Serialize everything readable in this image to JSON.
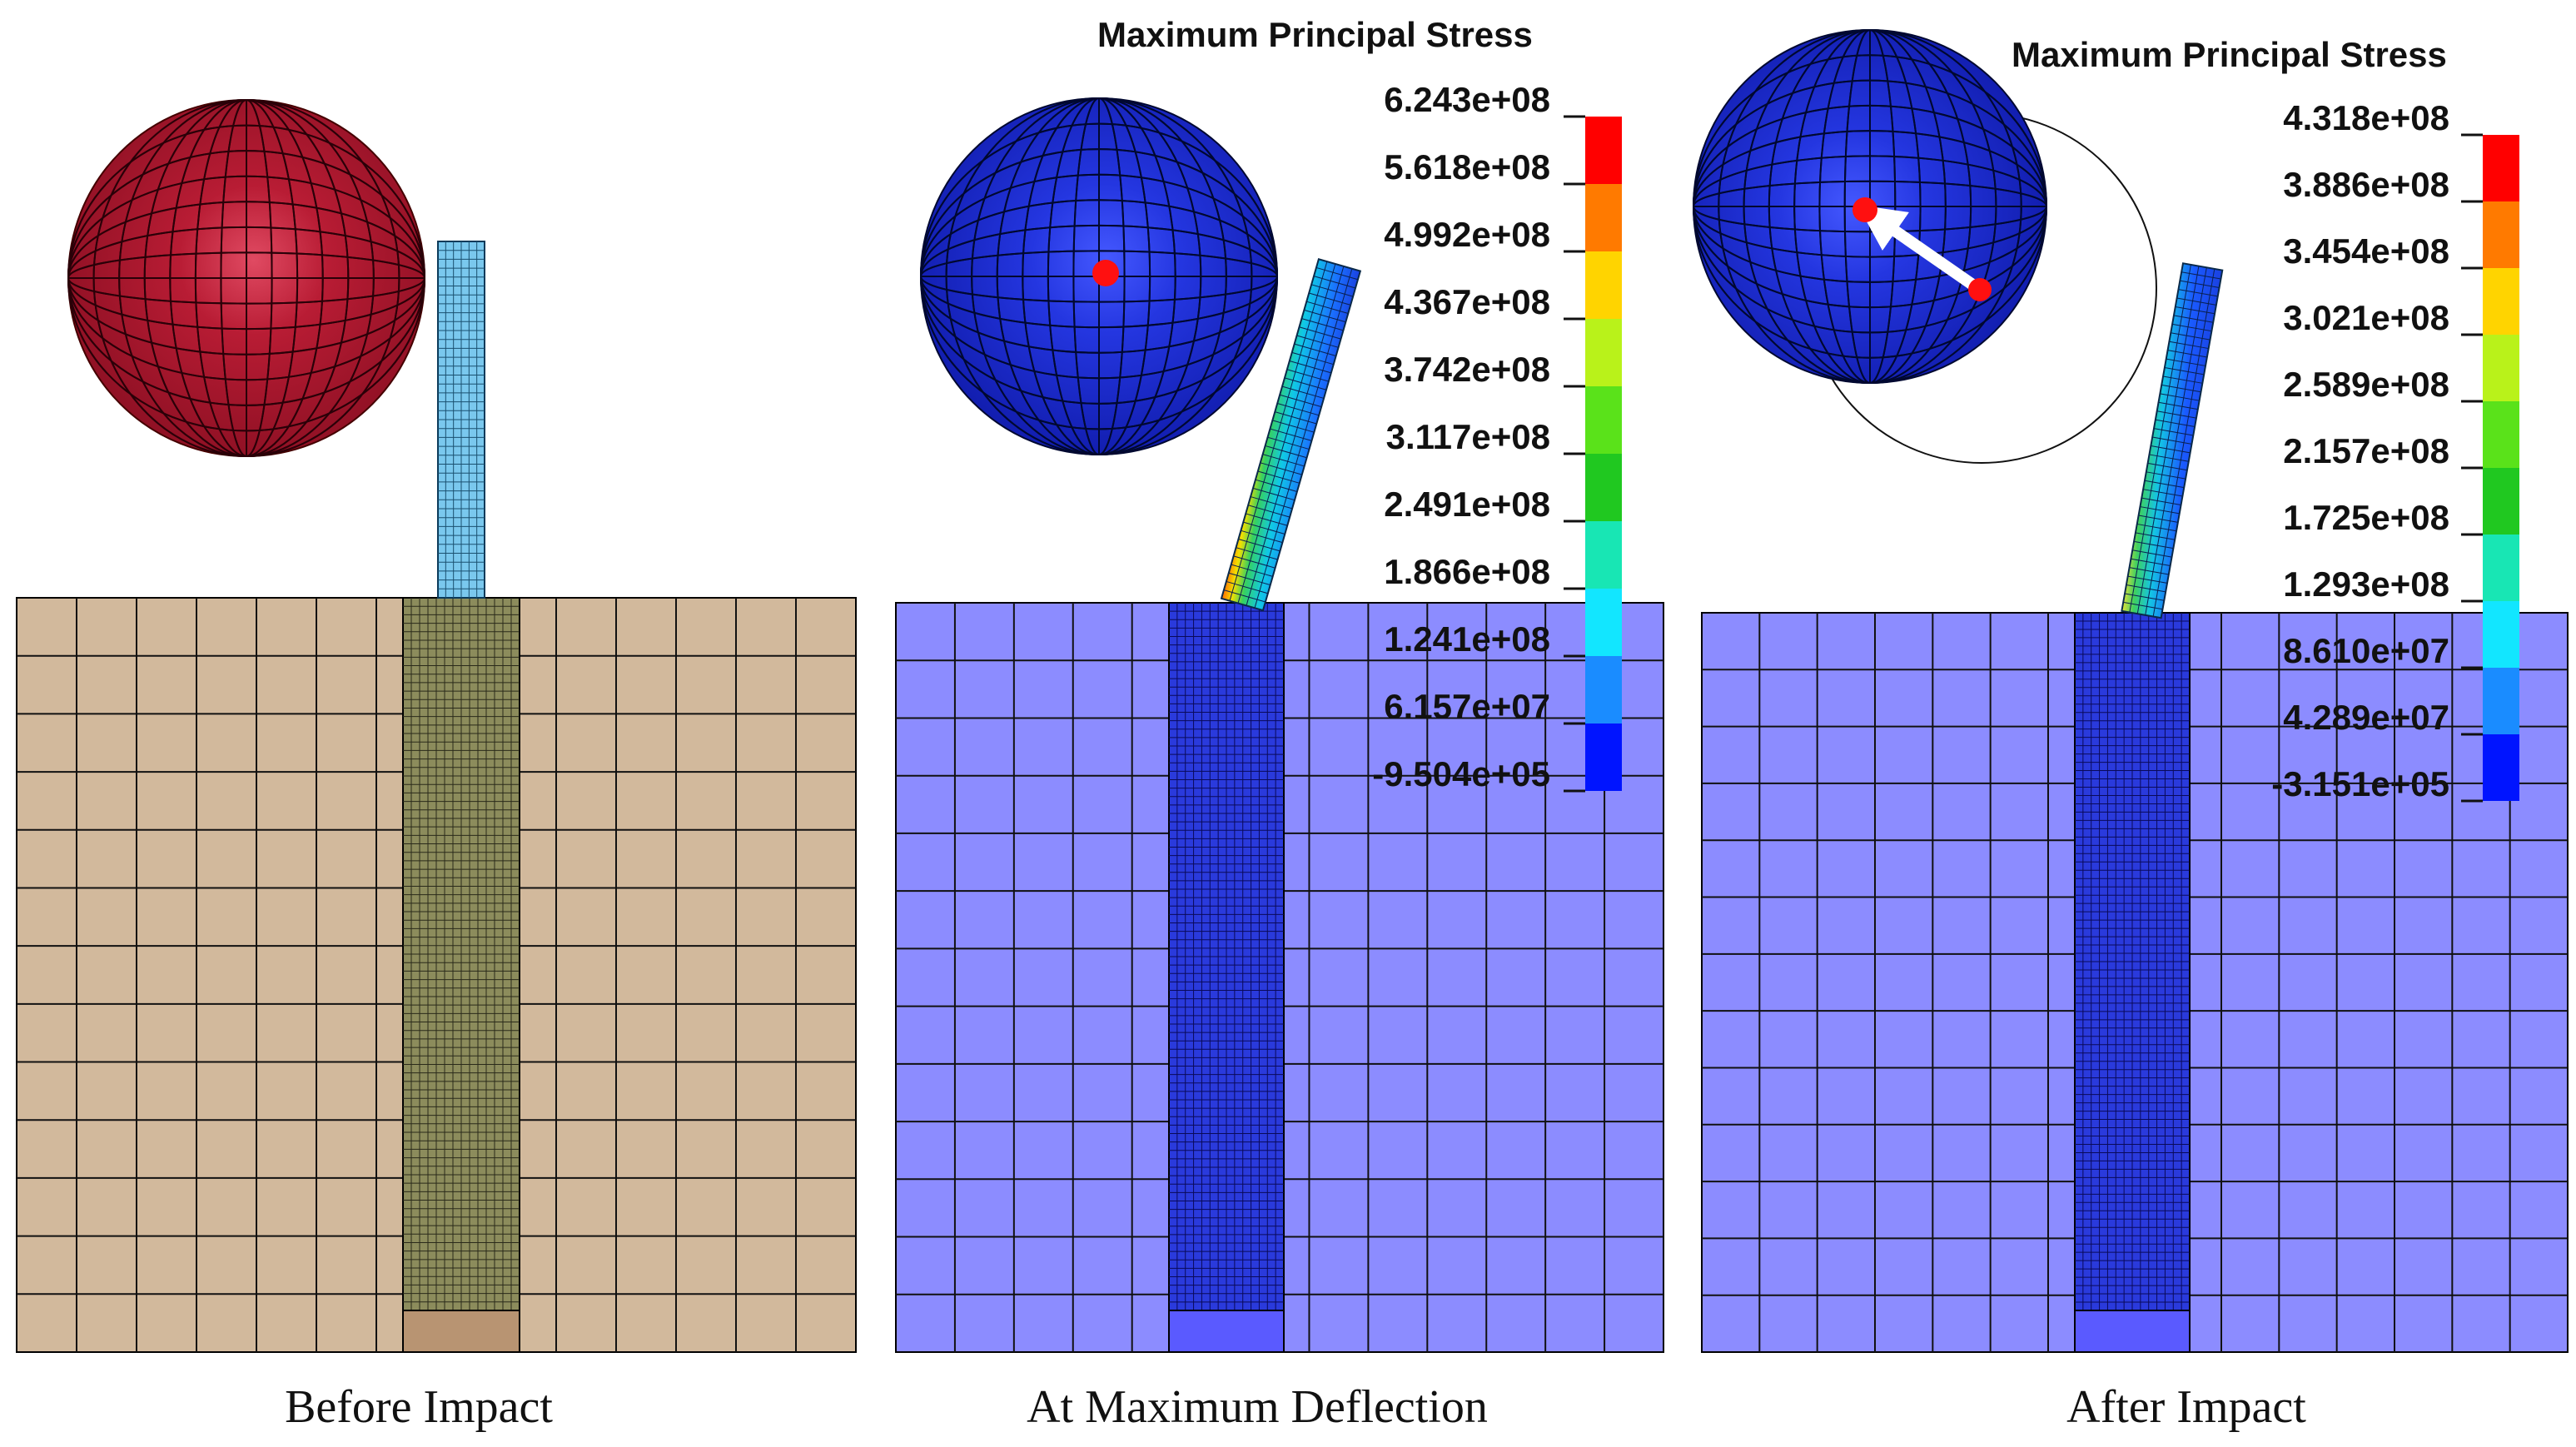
{
  "captions": {
    "before": "Before Impact",
    "max": "At Maximum Deflection",
    "after": "After Impact"
  },
  "panel2": {
    "title": "Maximum Principal Stress",
    "labels": [
      "6.243e+08",
      "5.618e+08",
      "4.992e+08",
      "4.367e+08",
      "3.742e+08",
      "3.117e+08",
      "2.491e+08",
      "1.866e+08",
      "1.241e+08",
      "6.157e+07",
      "-9.504e+05"
    ]
  },
  "panel3": {
    "title": "Maximum Principal Stress",
    "labels": [
      "4.318e+08",
      "3.886e+08",
      "3.454e+08",
      "3.021e+08",
      "2.589e+08",
      "2.157e+08",
      "1.725e+08",
      "1.293e+08",
      "8.610e+07",
      "4.289e+07",
      "-3.151e+05"
    ]
  },
  "colorscale": [
    "#ff0000",
    "#ff7a00",
    "#ffd400",
    "#b9f21a",
    "#5ae21a",
    "#20c820",
    "#18e6b4",
    "#12e6ff",
    "#1a8cff",
    "#0014ff"
  ],
  "colors": {
    "sphere_red": "#a4172a",
    "sphere_blue": "#1a2bd0",
    "soil_tan": "#d2b99c",
    "soil_blue": "#8c8cff",
    "pile_olive": "#8c8c5c",
    "pile_blue": "#2a3adc",
    "pole_cyan": "#7ac8ee",
    "marker_red": "#ff1010"
  }
}
